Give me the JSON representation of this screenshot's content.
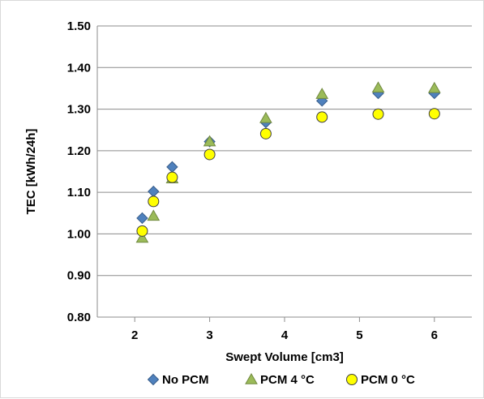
{
  "chart_data": {
    "type": "scatter",
    "xlabel": "Swept Volume [cm3]",
    "ylabel": "TEC [kWh/24h]",
    "xlim": [
      1.5,
      6.5
    ],
    "ylim": [
      0.8,
      1.5
    ],
    "xticks": [
      2,
      3,
      4,
      5,
      6
    ],
    "yticks": [
      0.8,
      0.9,
      1.0,
      1.1,
      1.2,
      1.3,
      1.4,
      1.5
    ],
    "ytick_labels": [
      "0.80",
      "0.90",
      "1.00",
      "1.10",
      "1.20",
      "1.30",
      "1.40",
      "1.50"
    ],
    "grid": "horizontal",
    "legend_position": "bottom",
    "series": [
      {
        "name": "No PCM",
        "marker": "diamond",
        "color": "#4f81bd",
        "stroke": "#385d8a",
        "x": [
          2.1,
          2.25,
          2.5,
          3.0,
          3.75,
          4.5,
          5.25,
          6.0
        ],
        "y": [
          1.038,
          1.102,
          1.161,
          1.222,
          1.268,
          1.32,
          1.338,
          1.338
        ]
      },
      {
        "name": "PCM 4 °C",
        "marker": "triangle",
        "color": "#9bbb59",
        "stroke": "#71893f",
        "x": [
          2.1,
          2.25,
          2.5,
          3.0,
          3.75,
          4.5,
          5.25,
          6.0
        ],
        "y": [
          0.99,
          1.043,
          1.133,
          1.222,
          1.278,
          1.336,
          1.351,
          1.35
        ]
      },
      {
        "name": "PCM 0 °C",
        "marker": "circle",
        "color": "#ffff00",
        "stroke": "#404040",
        "x": [
          2.1,
          2.25,
          2.5,
          3.0,
          3.75,
          4.5,
          5.25,
          6.0
        ],
        "y": [
          1.007,
          1.078,
          1.136,
          1.191,
          1.241,
          1.281,
          1.288,
          1.289
        ]
      }
    ]
  }
}
